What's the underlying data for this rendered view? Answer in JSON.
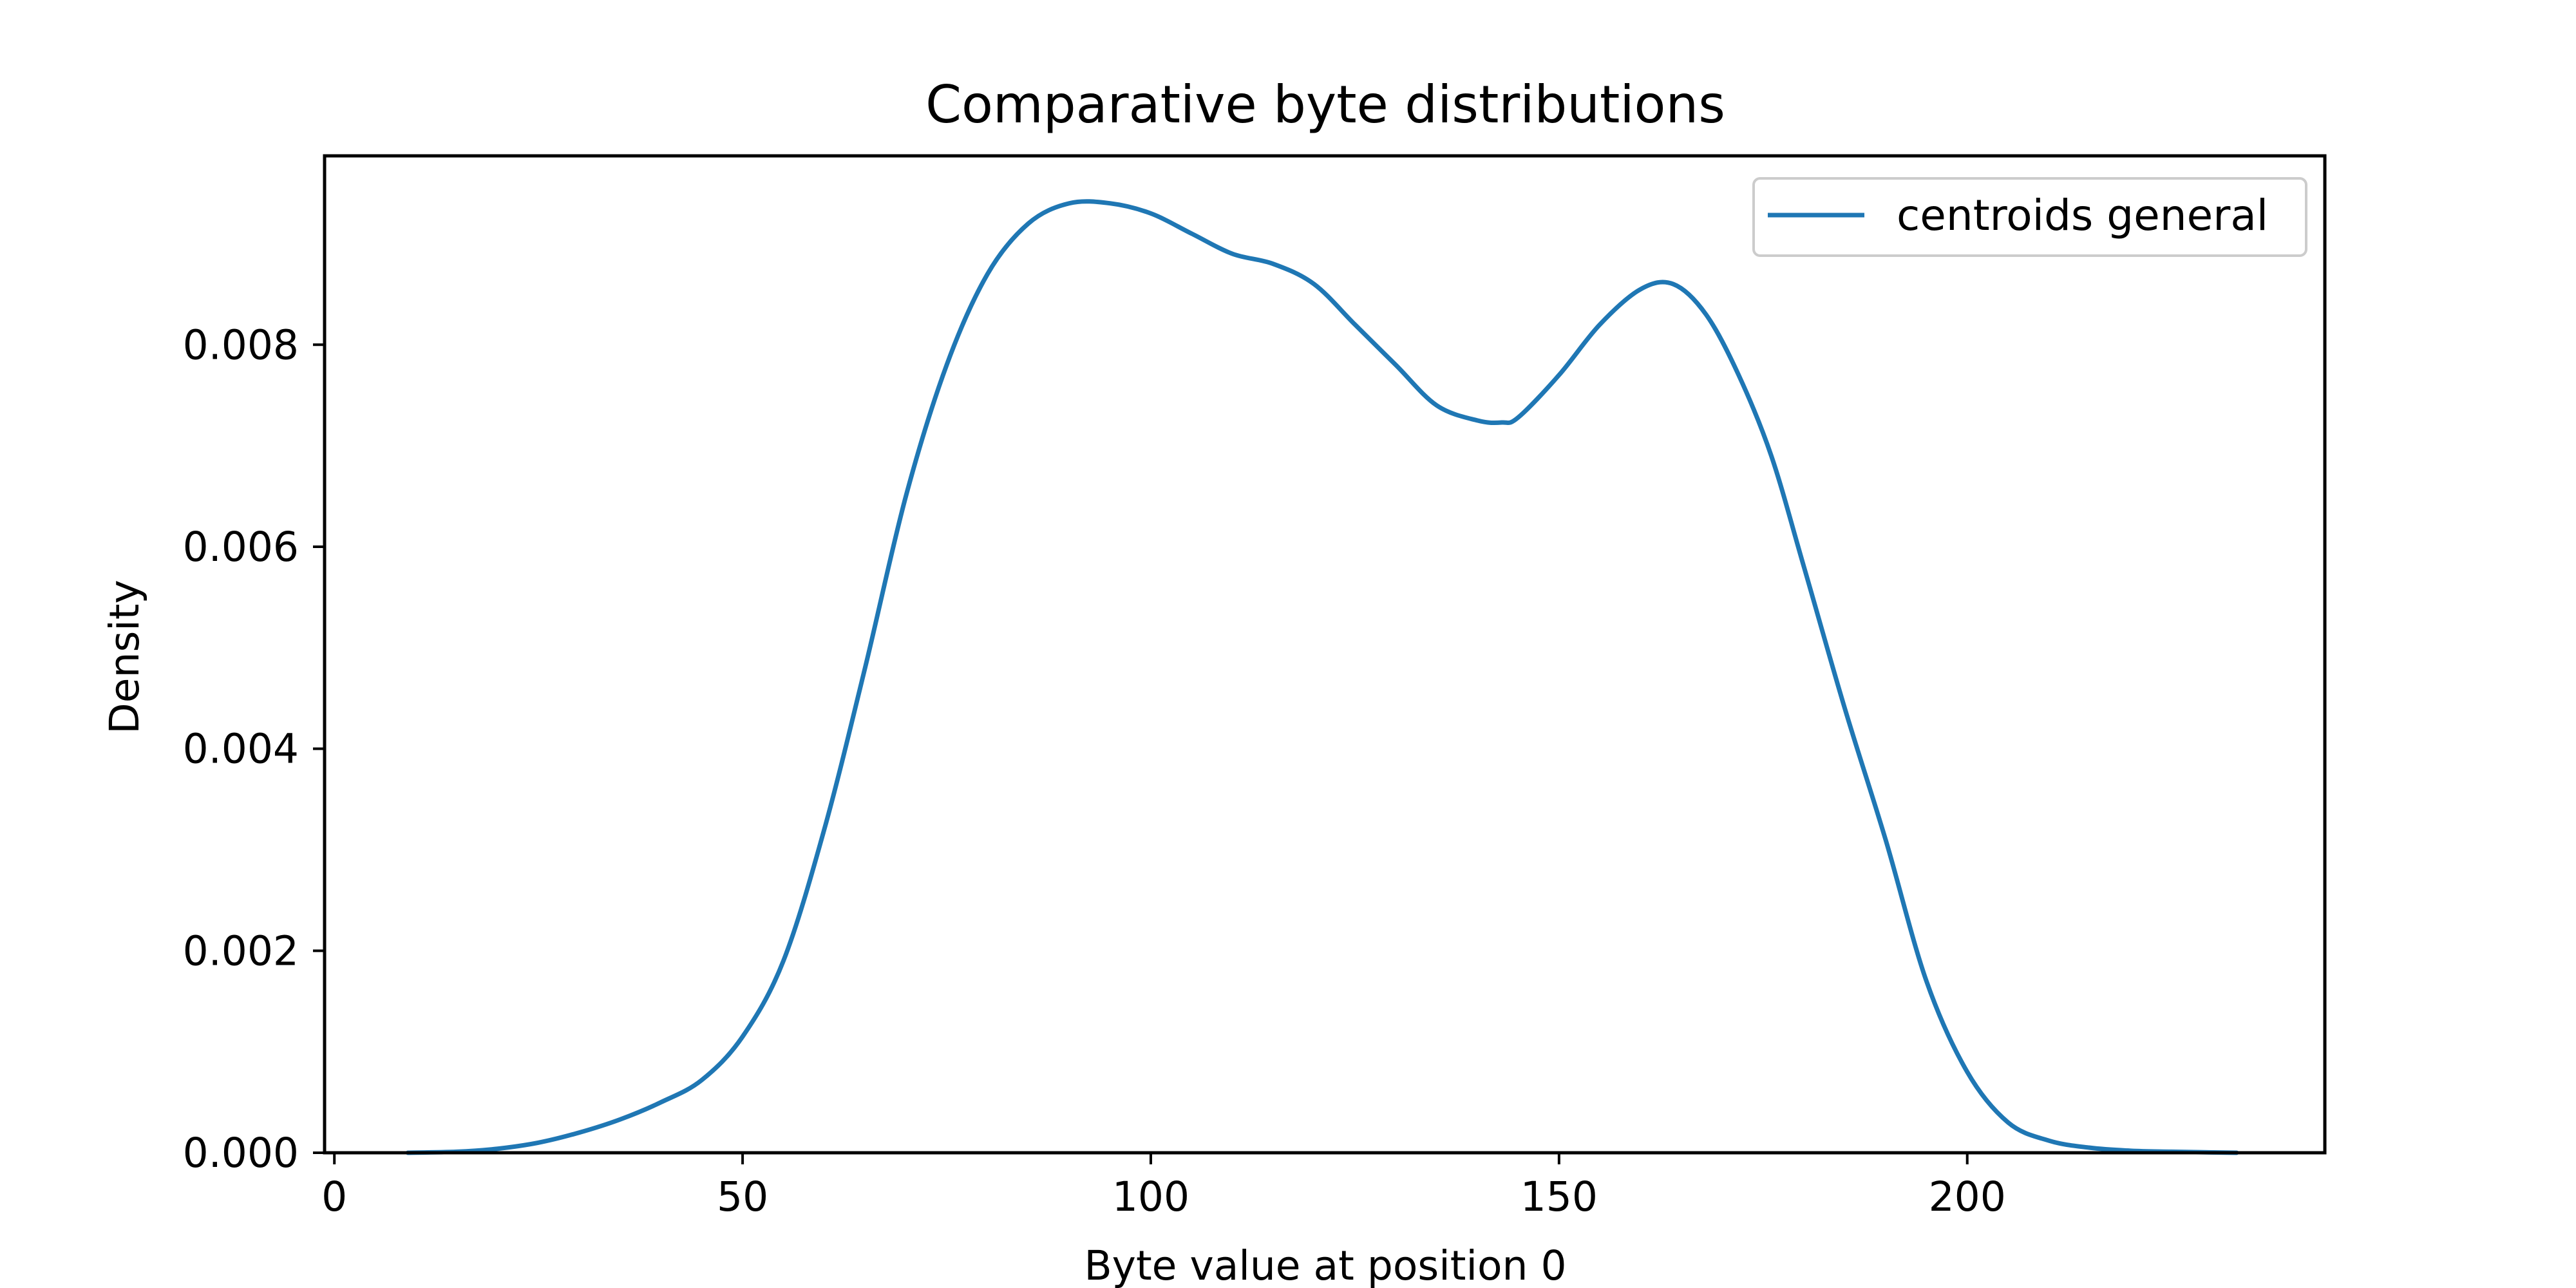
{
  "chart_data": {
    "type": "line",
    "title": "Comparative byte distributions",
    "xlabel": "Byte value at position 0",
    "ylabel": "Density",
    "xlim": [
      -1.2,
      243.8
    ],
    "ylim": [
      0,
      0.00987
    ],
    "xticks": [
      0,
      50,
      100,
      150,
      200
    ],
    "yticks": [
      0.0,
      0.002,
      0.004,
      0.006,
      0.008
    ],
    "ytick_labels": [
      "0.000",
      "0.002",
      "0.004",
      "0.006",
      "0.008"
    ],
    "grid": false,
    "legend": "top-right",
    "series": [
      {
        "name": "centroids general",
        "color": "#1f77b4",
        "x": [
          9,
          15,
          20,
          25,
          30,
          35,
          40,
          45,
          50,
          55,
          60,
          65,
          70,
          75,
          80,
          85,
          90,
          95,
          100,
          105,
          110,
          115,
          120,
          125,
          130,
          135,
          140,
          143,
          145,
          150,
          155,
          160,
          164,
          168,
          172,
          176,
          180,
          185,
          190,
          195,
          200,
          205,
          210,
          215,
          220,
          225,
          233
        ],
        "y": [
          0.0,
          1e-05,
          4e-05,
          0.0001,
          0.0002,
          0.00033,
          0.0005,
          0.00072,
          0.00115,
          0.0019,
          0.0032,
          0.0048,
          0.0065,
          0.0078,
          0.0087,
          0.0092,
          0.0094,
          0.0094,
          0.0093,
          0.0091,
          0.0089,
          0.0088,
          0.0086,
          0.0082,
          0.0078,
          0.0074,
          0.00725,
          0.00723,
          0.00728,
          0.0077,
          0.0082,
          0.00855,
          0.0086,
          0.0083,
          0.0077,
          0.0069,
          0.0058,
          0.0044,
          0.0031,
          0.0017,
          0.0008,
          0.0003,
          0.00012,
          5e-05,
          2e-05,
          1e-05,
          0.0
        ]
      }
    ]
  }
}
